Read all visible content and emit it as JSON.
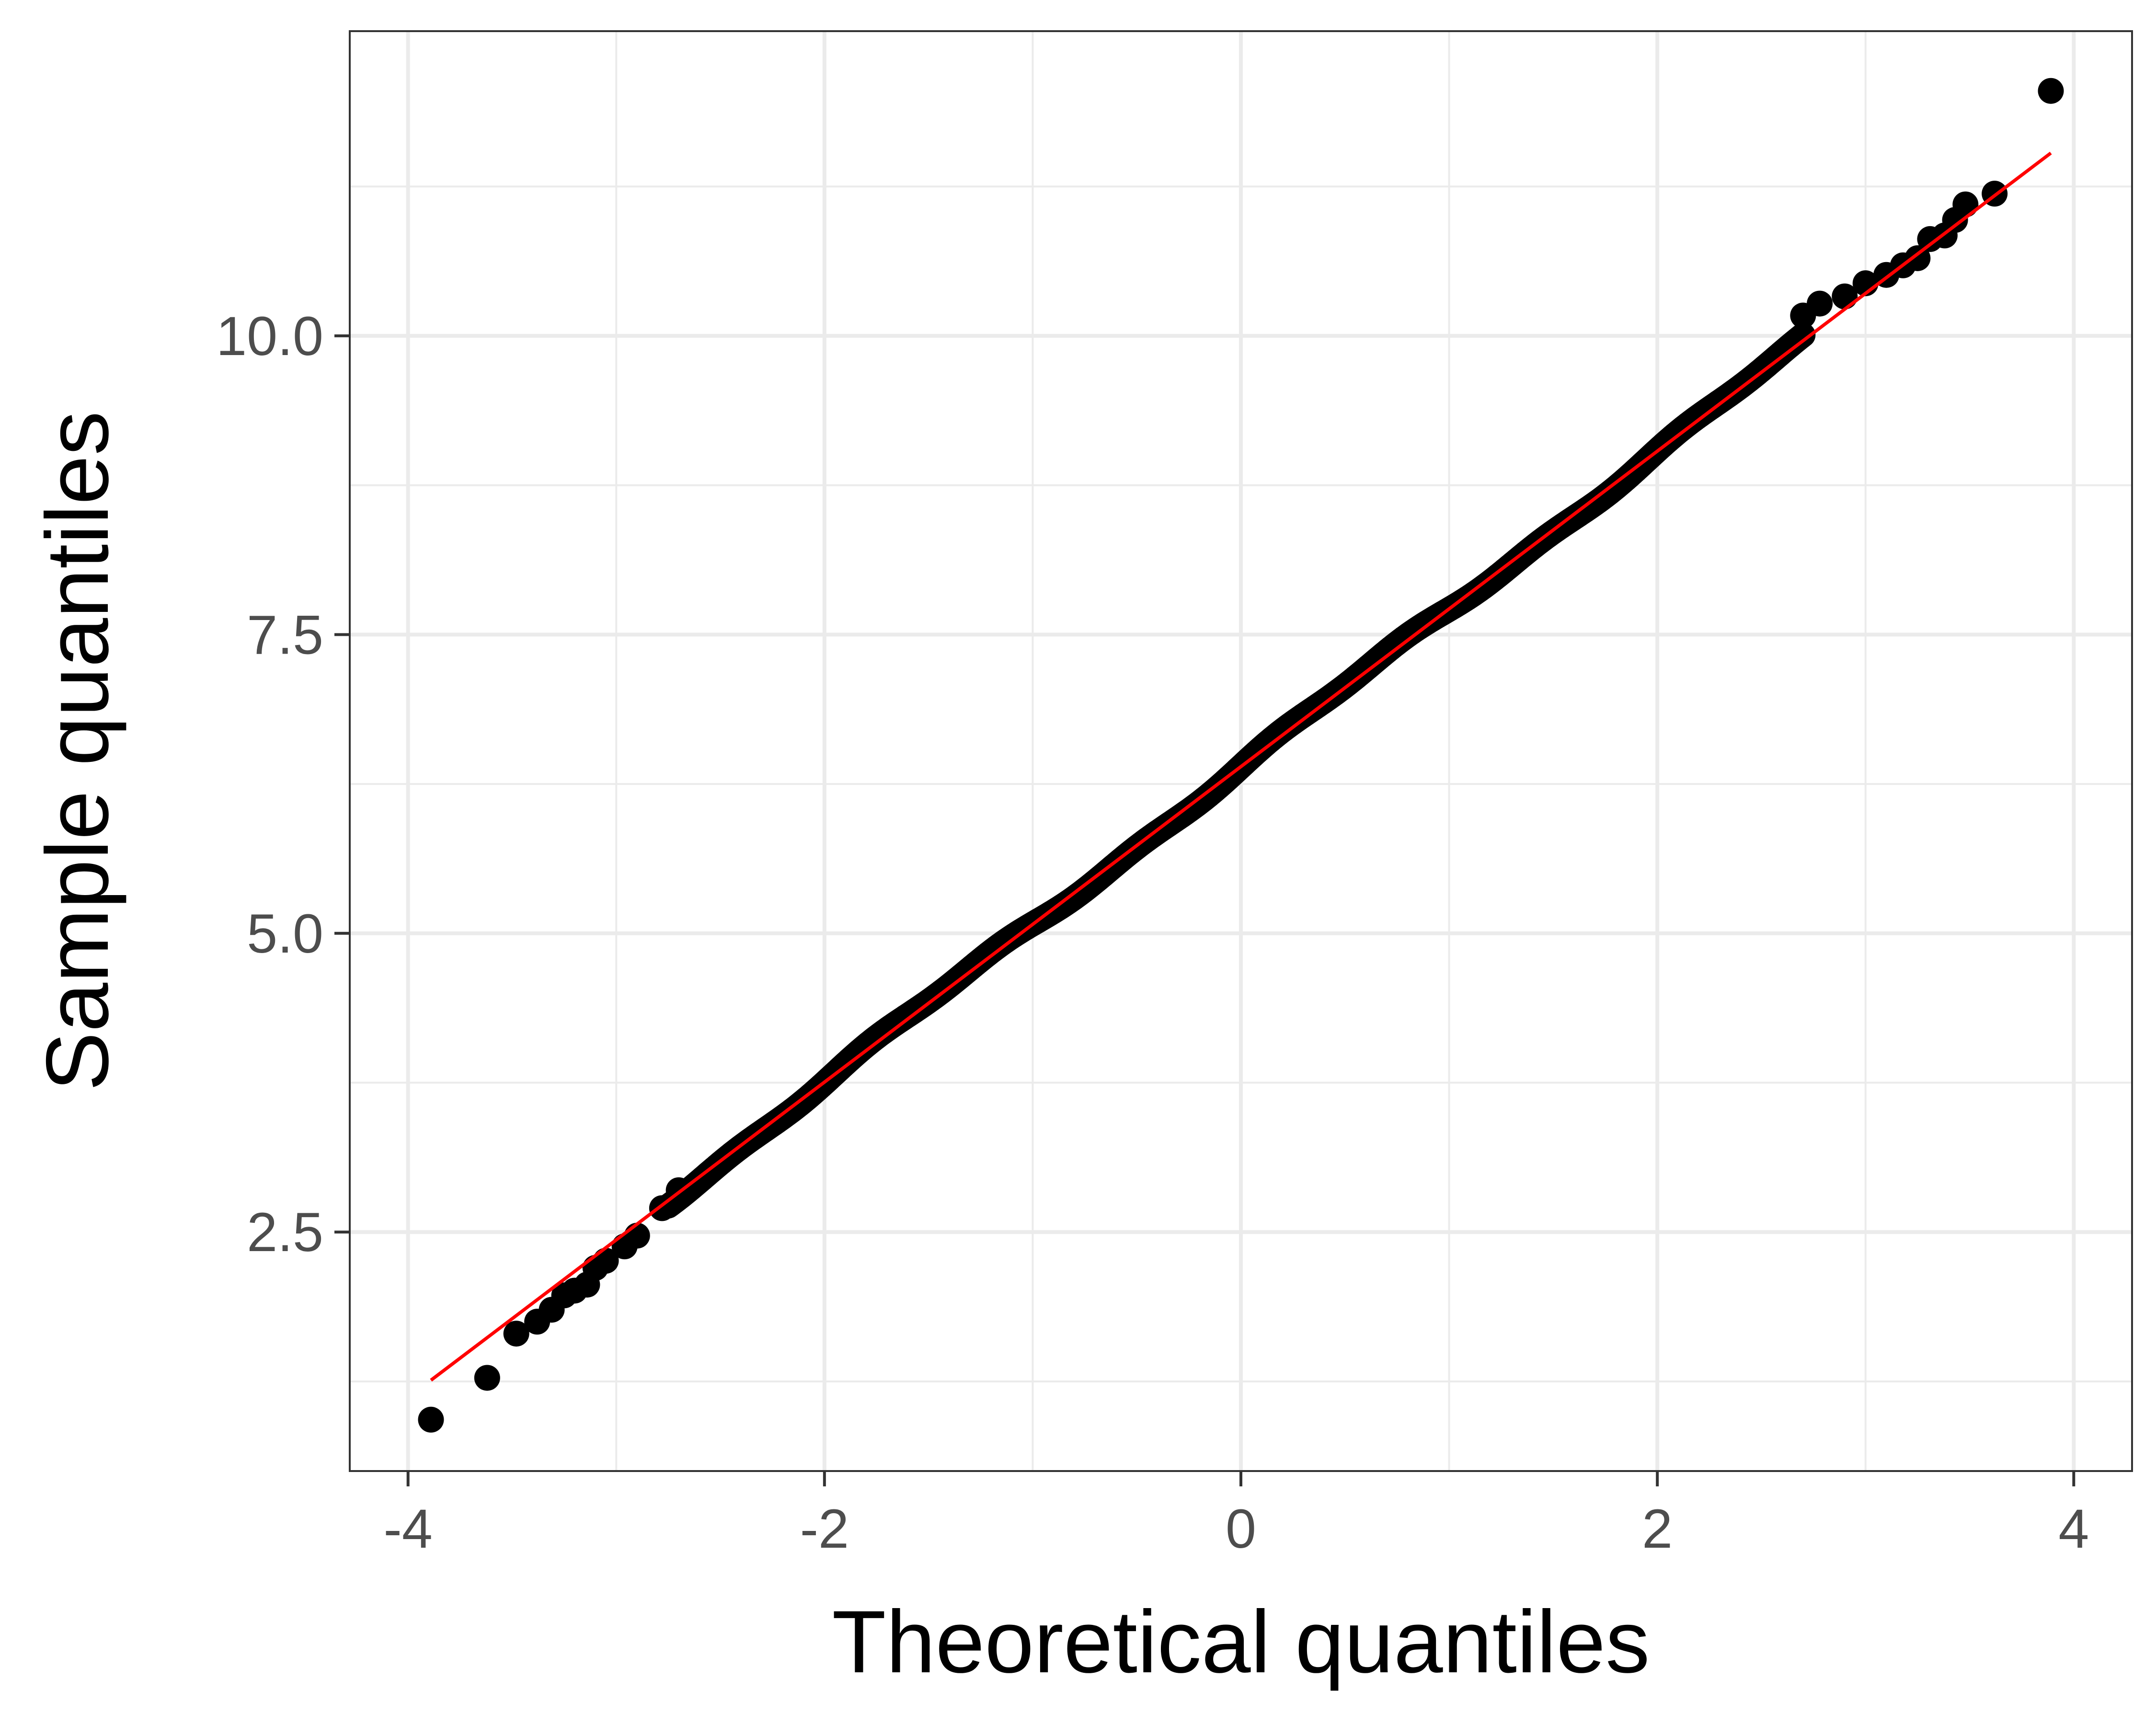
{
  "chart_data": {
    "type": "scatter",
    "title": "",
    "xlabel": "Theoretical quantiles",
    "ylabel": "Sample quantiles",
    "xlim": [
      -4.28,
      4.28
    ],
    "ylim": [
      0.5,
      12.55
    ],
    "x_ticks": [
      -4,
      -2,
      0,
      2,
      4
    ],
    "x_tick_labels": [
      "-4",
      "-2",
      "0",
      "2",
      "4"
    ],
    "y_ticks": [
      2.5,
      5.0,
      7.5,
      10.0
    ],
    "y_tick_labels": [
      "2.5",
      "5.0",
      "7.5",
      "10.0"
    ],
    "x_minor_ticks": [
      -3,
      -1,
      1,
      3
    ],
    "y_minor_ticks": [
      1.25,
      3.75,
      6.25,
      8.75,
      11.25
    ],
    "grid": true,
    "theme": "bw",
    "point_color": "#000000",
    "line_color": "#ff0000",
    "grid_color": "#ebebeb",
    "reference_line": {
      "x": [
        -3.89,
        3.89
      ],
      "y": [
        1.26,
        11.53
      ]
    },
    "sample_size_estimate": 10000,
    "notable_points": [
      {
        "x": -3.89,
        "y": 0.93
      },
      {
        "x": -3.62,
        "y": 1.28
      },
      {
        "x": -3.48,
        "y": 1.65
      },
      {
        "x": -3.38,
        "y": 1.75
      },
      {
        "x": -3.31,
        "y": 1.85
      },
      {
        "x": -3.25,
        "y": 1.97
      },
      {
        "x": -3.2,
        "y": 2.01
      },
      {
        "x": -3.14,
        "y": 2.06
      },
      {
        "x": -3.1,
        "y": 2.2
      },
      {
        "x": -3.05,
        "y": 2.26
      },
      {
        "x": -2.96,
        "y": 2.38
      },
      {
        "x": -2.9,
        "y": 2.47
      },
      {
        "x": -2.78,
        "y": 2.7
      },
      {
        "x": -2.7,
        "y": 2.85
      },
      {
        "x": 2.7,
        "y": 10.17
      },
      {
        "x": 2.78,
        "y": 10.27
      },
      {
        "x": 2.9,
        "y": 10.33
      },
      {
        "x": 3.0,
        "y": 10.44
      },
      {
        "x": 3.1,
        "y": 10.51
      },
      {
        "x": 3.18,
        "y": 10.59
      },
      {
        "x": 3.25,
        "y": 10.65
      },
      {
        "x": 3.31,
        "y": 10.81
      },
      {
        "x": 3.38,
        "y": 10.84
      },
      {
        "x": 3.43,
        "y": 10.97
      },
      {
        "x": 3.48,
        "y": 11.1
      },
      {
        "x": 3.62,
        "y": 11.19
      },
      {
        "x": 3.89,
        "y": 12.05
      }
    ]
  }
}
